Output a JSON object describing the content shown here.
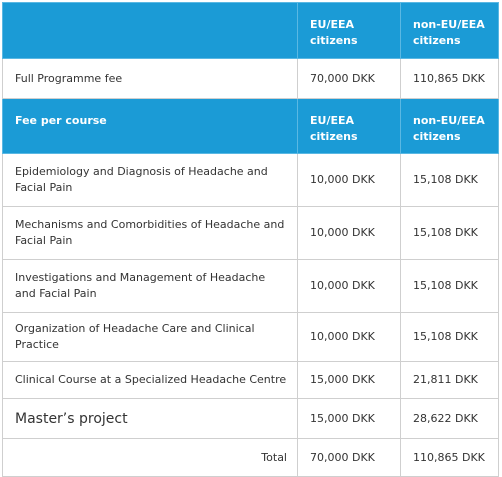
{
  "header_row": {
    "label": "",
    "eu": "EU/EEA citizens",
    "non_eu": "non-EU/EEA citizens"
  },
  "full_programme": {
    "label": "Full Programme fee",
    "eu": "70,000 DKK",
    "non_eu": "110,865 DKK"
  },
  "course_header": {
    "label": "Fee per course",
    "eu": "EU/EEA citizens",
    "non_eu": "non-EU/EEA citizens"
  },
  "courses": [
    {
      "name": "Epidemiology and Diagnosis of Headache and Facial Pain",
      "eu": "10,000 DKK",
      "non_eu": "15,108 DKK"
    },
    {
      "name": "Mechanisms and Comorbidities of Headache and Facial Pain",
      "eu": "10,000 DKK",
      "non_eu": "15,108 DKK"
    },
    {
      "name": "Investigations and Management of Headache and Facial Pain",
      "eu": "10,000 DKK",
      "non_eu": "15,108 DKK"
    },
    {
      "name": "Organization of Headache Care and Clinical Practice",
      "eu": "10,000 DKK",
      "non_eu": "15,108 DKK"
    },
    {
      "name": "Clinical Course at a Specialized Headache Centre",
      "eu": "15,000 DKK",
      "non_eu": "21,811 DKK"
    },
    {
      "name": "Master’s project",
      "eu": "15,000 DKK",
      "non_eu": "28,622 DKK"
    }
  ],
  "total": {
    "label": "Total",
    "eu": "70,000 DKK",
    "non_eu": "110,865 DKK"
  }
}
